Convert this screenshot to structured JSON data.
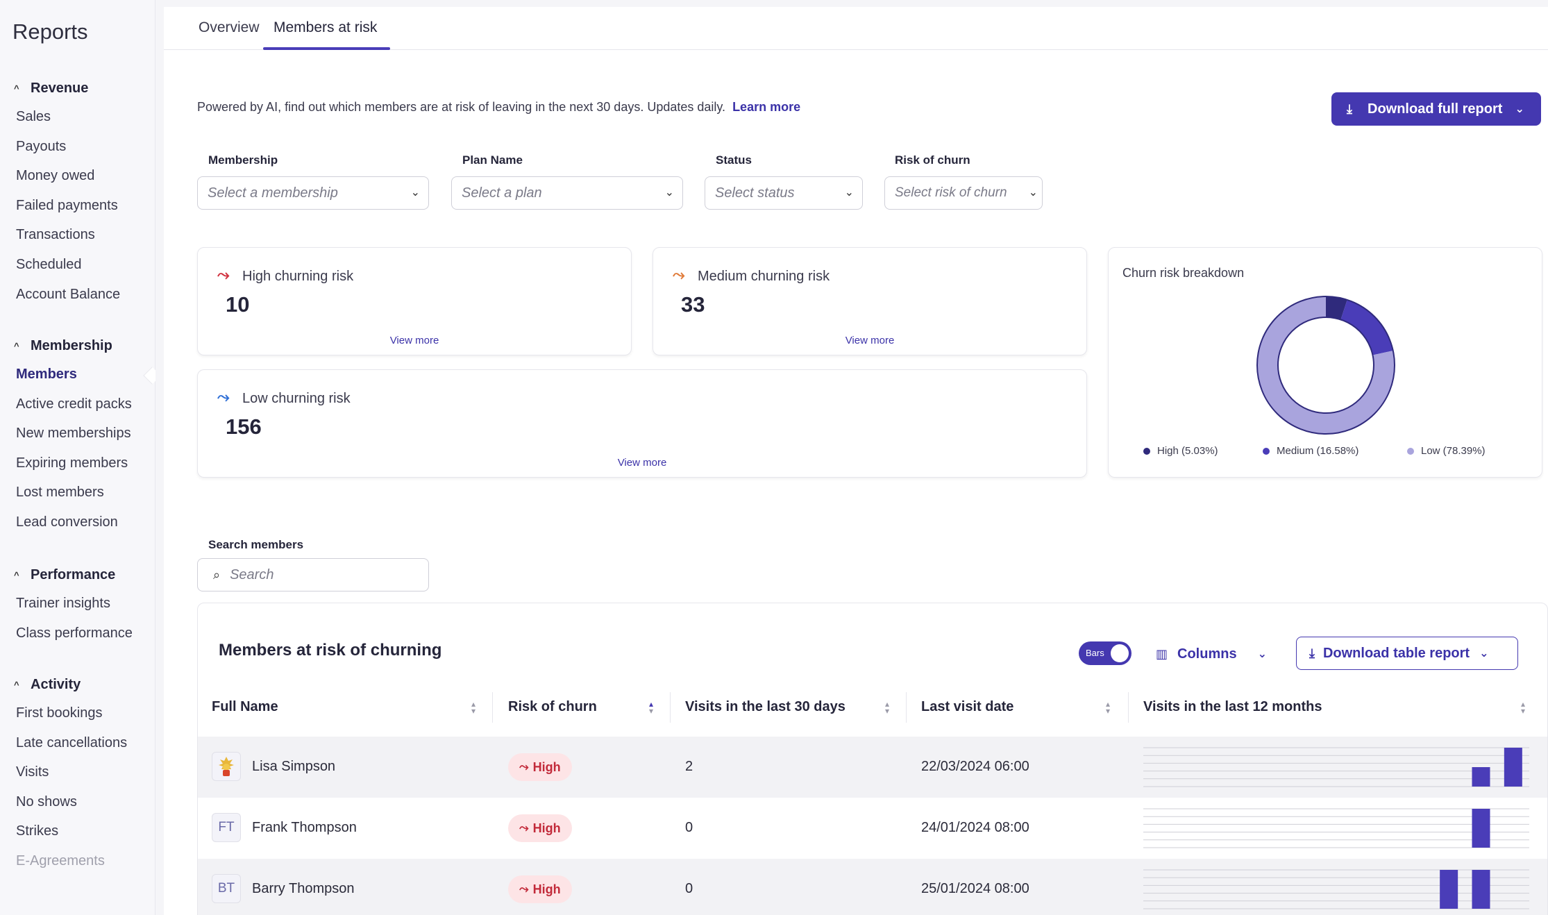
{
  "sidebar": {
    "title": "Reports",
    "groups": [
      {
        "label": "Revenue",
        "items": [
          "Sales",
          "Payouts",
          "Money owed",
          "Failed payments",
          "Transactions",
          "Scheduled",
          "Account Balance"
        ]
      },
      {
        "label": "Membership",
        "items": [
          "Members",
          "Active credit packs",
          "New memberships",
          "Expiring members",
          "Lost members",
          "Lead conversion"
        ]
      },
      {
        "label": "Performance",
        "items": [
          "Trainer insights",
          "Class performance"
        ]
      },
      {
        "label": "Activity",
        "items": [
          "First bookings",
          "Late cancellations",
          "Visits",
          "No shows",
          "Strikes",
          "E-Agreements"
        ]
      }
    ],
    "active_item": "Members"
  },
  "tabs": [
    {
      "label": "Overview"
    },
    {
      "label": "Members at risk"
    }
  ],
  "intro": {
    "text": "Powered by AI, find out which members are at risk of leaving in the next 30 days. Updates daily.",
    "link": "Learn more"
  },
  "download_full": {
    "label": "Download full report"
  },
  "filters": [
    {
      "label": "Membership",
      "placeholder": "Select a membership"
    },
    {
      "label": "Plan Name",
      "placeholder": "Select a plan"
    },
    {
      "label": "Status",
      "placeholder": "Select status"
    },
    {
      "label": "Risk of churn",
      "placeholder": "Select risk of churn"
    }
  ],
  "risk_cards": {
    "high": {
      "label": "High churning risk",
      "count": "10",
      "more": "View more",
      "color": "#d0313f"
    },
    "medium": {
      "label": "Medium churning risk",
      "count": "33",
      "more": "View more",
      "color": "#e07b39"
    },
    "low": {
      "label": "Low churning risk",
      "count": "156",
      "more": "View more",
      "color": "#2f6fd6"
    }
  },
  "chart_data": {
    "type": "pie",
    "title": "Churn risk breakdown",
    "categories": [
      "High",
      "Medium",
      "Low"
    ],
    "values": [
      5.03,
      16.58,
      78.39
    ],
    "legend_labels": [
      "High (5.03%)",
      "Medium (16.58%)",
      "Low (78.39%)"
    ],
    "colors": [
      "#2f2a7c",
      "#4a3db8",
      "#a9a4dd"
    ],
    "legend": "bottom"
  },
  "search": {
    "label": "Search members",
    "placeholder": "Search"
  },
  "table": {
    "title": "Members at risk of churning",
    "toggle_label": "Bars",
    "columns_label": "Columns",
    "download_label": "Download table report",
    "headers": [
      "Full Name",
      "Risk of churn",
      "Visits in the last 30 days",
      "Last visit date",
      "Visits in the last 12 months"
    ],
    "rows": [
      {
        "initials": "",
        "name": "Lisa Simpson",
        "risk": "High",
        "visits": "2",
        "date": "22/03/2024 06:00",
        "monthly": [
          0,
          0,
          0,
          0,
          0,
          0,
          0,
          0,
          0,
          0,
          1,
          2
        ]
      },
      {
        "initials": "FT",
        "name": "Frank Thompson",
        "risk": "High",
        "visits": "0",
        "date": "24/01/2024 08:00",
        "monthly": [
          0,
          0,
          0,
          0,
          0,
          0,
          0,
          0,
          0,
          0,
          2,
          0
        ]
      },
      {
        "initials": "BT",
        "name": "Barry Thompson",
        "risk": "High",
        "visits": "0",
        "date": "25/01/2024 08:00",
        "monthly": [
          0,
          0,
          0,
          0,
          0,
          0,
          0,
          0,
          0,
          2,
          2,
          0
        ]
      }
    ]
  }
}
